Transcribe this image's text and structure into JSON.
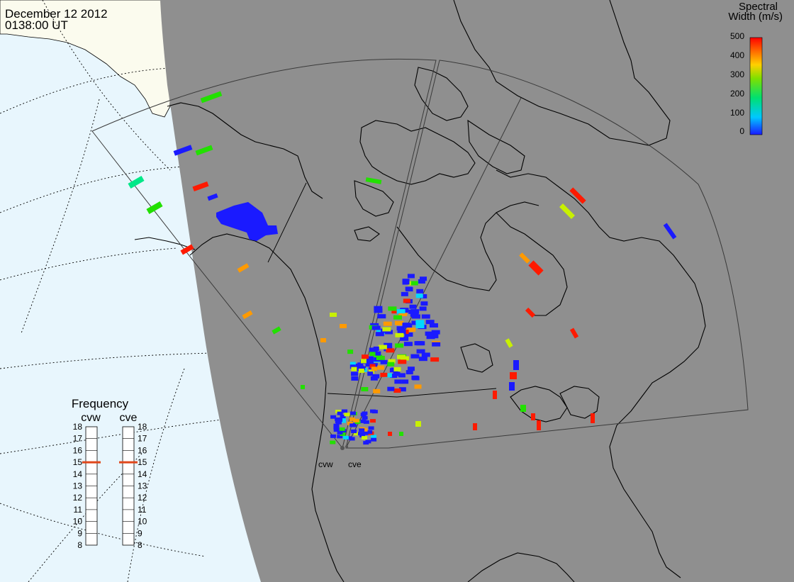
{
  "header": {
    "date": "December 12 2012",
    "time": "0138:00 UT"
  },
  "colorbar": {
    "title_line1": "Spectral",
    "title_line2": "Width (m/s)",
    "ticks": [
      "500",
      "400",
      "300",
      "200",
      "100",
      "0"
    ]
  },
  "frequency_panel": {
    "title": "Frequency",
    "left_label": "cvw",
    "right_label": "cve",
    "scale": [
      "18",
      "17",
      "16",
      "15",
      "14",
      "13",
      "12",
      "11",
      "10",
      "9",
      "8"
    ],
    "cvw_value": 15,
    "cve_value": 15,
    "marker_color": "#e0471b"
  },
  "radar_sites": {
    "west_label": "cvw",
    "east_label": "cve"
  },
  "colors": {
    "night_shade": "#8f8f8f",
    "ocean_day": "#e8f6fd",
    "land_day": "#fbfbee",
    "coastline": "#000000",
    "fov_outline": "#3a3a3a"
  }
}
